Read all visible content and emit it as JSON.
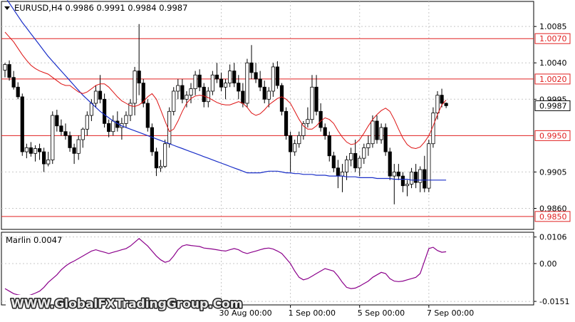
{
  "header": {
    "symbol_line": "EURUSD,H4  0.9986 0.9991 0.9984 0.9987"
  },
  "watermark": "WWW.GlobalFXTradingGroup.Com",
  "indicator": {
    "label": "Marlin 0.0047",
    "color": "#8b008b"
  },
  "chart_data": [
    {
      "type": "candlestick",
      "title": "EURUSD,H4",
      "ylim": [
        0.9834,
        1.0116
      ],
      "price_ticks": [
        "1.0085",
        "1.0040",
        "0.9995",
        "0.9905",
        "0.9860"
      ],
      "x_tick_labels": [
        "30 Aug 00:00",
        "1 Sep 00:00",
        "5 Sep 00:00",
        "7 Sep 00:00"
      ],
      "x_tick_bar_index": [
        50,
        66,
        82,
        98
      ],
      "horizontal_levels": [
        {
          "label": "1.0070",
          "value": 1.007
        },
        {
          "label": "1.0020",
          "value": 1.002
        },
        {
          "label": "0.9950",
          "value": 0.995
        },
        {
          "label": "0.9850",
          "value": 0.985
        }
      ],
      "current_price": {
        "label": "0.9987",
        "value": 0.9987
      },
      "level_color": "#e02020",
      "up_color": "#ffffff",
      "down_color": "#000000",
      "ma_fast_color": "#dd1111",
      "ma_slow_color": "#1a2fc8",
      "candles": [
        [
          1.0031,
          1.004,
          1.0022,
          1.0038
        ],
        [
          1.0038,
          1.0043,
          1.0018,
          1.0022
        ],
        [
          1.0022,
          1.003,
          1.0007,
          1.001
        ],
        [
          1.001,
          1.0016,
          0.9995,
          0.9998
        ],
        [
          0.9998,
          1.0002,
          0.9925,
          0.993
        ],
        [
          0.993,
          0.994,
          0.9922,
          0.9935
        ],
        [
          0.9935,
          0.9942,
          0.9924,
          0.9928
        ],
        [
          0.9928,
          0.9938,
          0.9918,
          0.9934
        ],
        [
          0.9934,
          0.994,
          0.992,
          0.993
        ],
        [
          0.993,
          0.9935,
          0.9905,
          0.9915
        ],
        [
          0.9915,
          0.993,
          0.9912,
          0.992
        ],
        [
          0.992,
          0.998,
          0.9915,
          0.9975
        ],
        [
          0.9975,
          0.9982,
          0.9955,
          0.9962
        ],
        [
          0.9962,
          0.997,
          0.995,
          0.9955
        ],
        [
          0.9955,
          0.9965,
          0.9945,
          0.995
        ],
        [
          0.995,
          0.9955,
          0.993,
          0.9935
        ],
        [
          0.9935,
          0.994,
          0.9915,
          0.9928
        ],
        [
          0.9928,
          0.995,
          0.992,
          0.9945
        ],
        [
          0.9945,
          0.996,
          0.9935,
          0.9958
        ],
        [
          0.9958,
          0.998,
          0.995,
          0.9975
        ],
        [
          0.9975,
          0.9995,
          0.9968,
          0.999
        ],
        [
          0.999,
          1.0012,
          0.9985,
          1.0005
        ],
        [
          1.0005,
          1.0025,
          0.999,
          0.9995
        ],
        [
          0.9995,
          1.0002,
          0.996,
          0.9965
        ],
        [
          0.9965,
          0.997,
          0.9948,
          0.9955
        ],
        [
          0.9955,
          0.9975,
          0.995,
          0.9968
        ],
        [
          0.9968,
          0.998,
          0.9955,
          0.996
        ],
        [
          0.996,
          0.9972,
          0.9945,
          0.9965
        ],
        [
          0.9965,
          0.998,
          0.996,
          0.9975
        ],
        [
          0.9975,
          0.9995,
          0.9968,
          0.999
        ],
        [
          0.999,
          1.0035,
          0.9975,
          1.003
        ],
        [
          1.003,
          1.0088,
          1.0,
          1.0015
        ],
        [
          1.0015,
          1.002,
          0.9985,
          0.999
        ],
        [
          0.999,
          0.9995,
          0.9955,
          0.996
        ],
        [
          0.996,
          0.9965,
          0.9925,
          0.993
        ],
        [
          0.993,
          0.9935,
          0.99,
          0.991
        ],
        [
          0.991,
          0.992,
          0.9905,
          0.9912
        ],
        [
          0.9912,
          0.9945,
          0.991,
          0.994
        ],
        [
          0.994,
          0.9985,
          0.9935,
          0.998
        ],
        [
          0.998,
          1.001,
          0.9975,
          1.0005
        ],
        [
          1.0005,
          1.002,
          0.9995,
          1.0012
        ],
        [
          1.0012,
          1.002,
          0.999,
          0.9995
        ],
        [
          0.9995,
          1.0005,
          0.9985,
          1.0
        ],
        [
          1.0,
          1.0015,
          0.999,
          1.0008
        ],
        [
          1.0008,
          1.003,
          1.0,
          1.0025
        ],
        [
          1.0025,
          1.0032,
          1.0005,
          1.001
        ],
        [
          1.001,
          1.0015,
          0.9985,
          0.9992
        ],
        [
          0.9992,
          1.001,
          0.9985,
          1.0005
        ],
        [
          1.0005,
          1.003,
          1.0,
          1.0025
        ],
        [
          1.0025,
          1.004,
          1.0015,
          1.002
        ],
        [
          1.002,
          1.0028,
          1.0005,
          1.001
        ],
        [
          1.001,
          1.002,
          0.9995,
          1.0015
        ],
        [
          1.0015,
          1.0038,
          1.001,
          1.003
        ],
        [
          1.003,
          1.004,
          1.001,
          1.0015
        ],
        [
          1.0015,
          1.0025,
          0.9995,
          1.0005
        ],
        [
          1.0005,
          1.0015,
          0.9985,
          0.999
        ],
        [
          0.999,
          1.0045,
          0.9985,
          1.004
        ],
        [
          1.004,
          1.0062,
          1.002,
          1.0028
        ],
        [
          1.0028,
          1.004,
          1.0015,
          1.002
        ],
        [
          1.002,
          1.003,
          1.0005,
          1.001
        ],
        [
          1.001,
          1.0018,
          0.999,
          0.9995
        ],
        [
          0.9995,
          1.001,
          0.9985,
          1.0005
        ],
        [
          1.0005,
          1.004,
          0.9998,
          1.0035
        ],
        [
          1.0035,
          1.0042,
          1.0008,
          1.0012
        ],
        [
          1.0012,
          1.0015,
          0.9975,
          0.998
        ],
        [
          0.998,
          0.9985,
          0.9945,
          0.995
        ],
        [
          0.995,
          0.9955,
          0.9905,
          0.993
        ],
        [
          0.993,
          0.9945,
          0.9925,
          0.994
        ],
        [
          0.994,
          0.9955,
          0.9935,
          0.995
        ],
        [
          0.995,
          0.9968,
          0.9945,
          0.9965
        ],
        [
          0.9965,
          0.9985,
          0.996,
          0.997
        ],
        [
          0.997,
          1.0025,
          0.9965,
          1.001
        ],
        [
          1.001,
          1.0025,
          0.9975,
          0.998
        ],
        [
          0.998,
          0.999,
          0.9955,
          0.996
        ],
        [
          0.996,
          0.9965,
          0.9945,
          0.995
        ],
        [
          0.995,
          0.9955,
          0.9918,
          0.9925
        ],
        [
          0.9925,
          0.993,
          0.9905,
          0.991
        ],
        [
          0.991,
          0.992,
          0.9885,
          0.99
        ],
        [
          0.99,
          0.9915,
          0.988,
          0.9905
        ],
        [
          0.9905,
          0.9925,
          0.9895,
          0.992
        ],
        [
          0.992,
          0.9935,
          0.9912,
          0.9928
        ],
        [
          0.9928,
          0.9945,
          0.9905,
          0.991
        ],
        [
          0.991,
          0.9925,
          0.99,
          0.9922
        ],
        [
          0.9922,
          0.994,
          0.9915,
          0.9935
        ],
        [
          0.9935,
          0.995,
          0.9925,
          0.994
        ],
        [
          0.994,
          0.9975,
          0.9935,
          0.9968
        ],
        [
          0.9968,
          0.9975,
          0.994,
          0.9945
        ],
        [
          0.9945,
          0.9965,
          0.994,
          0.996
        ],
        [
          0.996,
          0.9965,
          0.9925,
          0.993
        ],
        [
          0.993,
          0.9935,
          0.9895,
          0.99
        ],
        [
          0.99,
          0.9915,
          0.9865,
          0.9905
        ],
        [
          0.9905,
          0.9915,
          0.9895,
          0.99
        ],
        [
          0.99,
          0.9905,
          0.988,
          0.9888
        ],
        [
          0.9888,
          0.9895,
          0.9875,
          0.989
        ],
        [
          0.989,
          0.991,
          0.9885,
          0.9905
        ],
        [
          0.9905,
          0.9915,
          0.9885,
          0.9892
        ],
        [
          0.9892,
          0.9912,
          0.988,
          0.9908
        ],
        [
          0.9908,
          0.9925,
          0.988,
          0.9885
        ],
        [
          0.9885,
          0.9945,
          0.988,
          0.994
        ],
        [
          0.994,
          0.9985,
          0.9935,
          0.9978
        ],
        [
          0.9978,
          1.0005,
          0.997,
          1.0
        ],
        [
          1.0,
          1.0008,
          0.9985,
          0.999
        ],
        [
          0.999,
          0.9991,
          0.9984,
          0.9987
        ]
      ],
      "ma_fast": [
        1.0078,
        1.0072,
        1.0066,
        1.0058,
        1.005,
        1.0043,
        1.0037,
        1.0033,
        1.003,
        1.0028,
        1.0026,
        1.0022,
        1.0018,
        1.0014,
        1.0012,
        1.0012,
        1.0008,
        1.0004,
        1.0002,
        1.0004,
        1.0008,
        1.0012,
        1.0014,
        1.0014,
        1.001,
        1.0004,
        0.9998,
        0.9993,
        0.999,
        0.9987,
        0.9986,
        0.9988,
        0.9992,
        0.9998,
        1.0002,
        0.9995,
        0.9982,
        0.9968,
        0.9955,
        0.9958,
        0.9968,
        0.998,
        0.999,
        0.9996,
        0.9999,
        1.0,
        0.9999,
        0.9997,
        0.9994,
        0.9991,
        0.9989,
        0.9988,
        0.9988,
        0.999,
        0.9992,
        0.999,
        0.9985,
        0.9978,
        0.9975,
        0.9977,
        0.9982,
        0.9988,
        0.9992,
        0.9996,
        0.9998,
        0.9995,
        0.999,
        0.998,
        0.997,
        0.9962,
        0.9958,
        0.9958,
        0.9962,
        0.9968,
        0.9972,
        0.997,
        0.9965,
        0.9956,
        0.9948,
        0.9942,
        0.9939,
        0.994,
        0.9945,
        0.9953,
        0.9962,
        0.997,
        0.9976,
        0.9981,
        0.9984,
        0.998,
        0.997,
        0.9958,
        0.9947,
        0.9939,
        0.9935,
        0.9934,
        0.9936,
        0.9942,
        0.995,
        0.9962,
        0.9976,
        0.9988,
        0.9994
      ],
      "ma_slow": [
        1.0122,
        1.0114,
        1.0106,
        1.0098,
        1.009,
        1.0083,
        1.0076,
        1.0069,
        1.0062,
        1.0055,
        1.0048,
        1.0042,
        1.0036,
        1.003,
        1.0024,
        1.0018,
        1.0012,
        1.0006,
        1.0,
        0.9995,
        0.999,
        0.9985,
        0.998,
        0.9976,
        0.9972,
        0.9968,
        0.9965,
        0.9962,
        0.996,
        0.9958,
        0.9956,
        0.9954,
        0.9952,
        0.995,
        0.9948,
        0.9946,
        0.9944,
        0.9942,
        0.994,
        0.9938,
        0.9936,
        0.9934,
        0.9932,
        0.993,
        0.9928,
        0.9926,
        0.9924,
        0.9922,
        0.992,
        0.9918,
        0.9916,
        0.9914,
        0.9912,
        0.991,
        0.9908,
        0.9906,
        0.9904,
        0.9904,
        0.9904,
        0.9904,
        0.9905,
        0.9906,
        0.9906,
        0.9906,
        0.9905,
        0.9904,
        0.9904,
        0.9903,
        0.9903,
        0.9902,
        0.9902,
        0.9902,
        0.9901,
        0.9901,
        0.9901,
        0.99,
        0.99,
        0.99,
        0.99,
        0.9899,
        0.9899,
        0.9899,
        0.9898,
        0.9898,
        0.9898,
        0.9898,
        0.9897,
        0.9897,
        0.9897,
        0.9897,
        0.9896,
        0.9896,
        0.9896,
        0.9896,
        0.9895,
        0.9895,
        0.9895,
        0.9895,
        0.9895,
        0.9895,
        0.9895,
        0.9895,
        0.9895
      ]
    },
    {
      "type": "line",
      "title": "Marlin 0.0047",
      "ylim": [
        -0.0165,
        0.0125
      ],
      "y_ticks": [
        "0.0106",
        "0.00",
        "-0.0151"
      ],
      "color": "#8b008b",
      "series": [
        {
          "values": [
            -0.01,
            -0.011,
            -0.012,
            -0.0125,
            -0.0128,
            -0.013,
            -0.0125,
            -0.0118,
            -0.011,
            -0.0095,
            -0.0075,
            -0.006,
            -0.0045,
            -0.0025,
            -0.001,
            0.0002,
            0.001,
            0.002,
            0.003,
            0.004,
            0.005,
            0.0055,
            0.005,
            0.0045,
            0.004,
            0.0045,
            0.005,
            0.0055,
            0.006,
            0.007,
            0.0085,
            0.01,
            0.0085,
            0.007,
            0.005,
            0.003,
            0.0015,
            0.0005,
            0.001,
            0.003,
            0.0055,
            0.007,
            0.0075,
            0.0072,
            0.007,
            0.0068,
            0.0062,
            0.006,
            0.0058,
            0.0055,
            0.0052,
            0.005,
            0.0055,
            0.006,
            0.0055,
            0.0045,
            0.004,
            0.0045,
            0.005,
            0.0055,
            0.006,
            0.0062,
            0.0058,
            0.005,
            0.004,
            0.002,
            0.0,
            -0.003,
            -0.0055,
            -0.0065,
            -0.006,
            -0.005,
            -0.004,
            -0.003,
            -0.002,
            -0.0025,
            -0.003,
            -0.005,
            -0.0075,
            -0.0095,
            -0.01,
            -0.0098,
            -0.009,
            -0.008,
            -0.007,
            -0.0055,
            -0.0045,
            -0.0035,
            -0.004,
            -0.006,
            -0.007,
            -0.0072,
            -0.007,
            -0.0065,
            -0.006,
            -0.0055,
            -0.004,
            0.001,
            0.006,
            0.0065,
            0.0052,
            0.0045,
            0.0047
          ]
        }
      ]
    }
  ]
}
